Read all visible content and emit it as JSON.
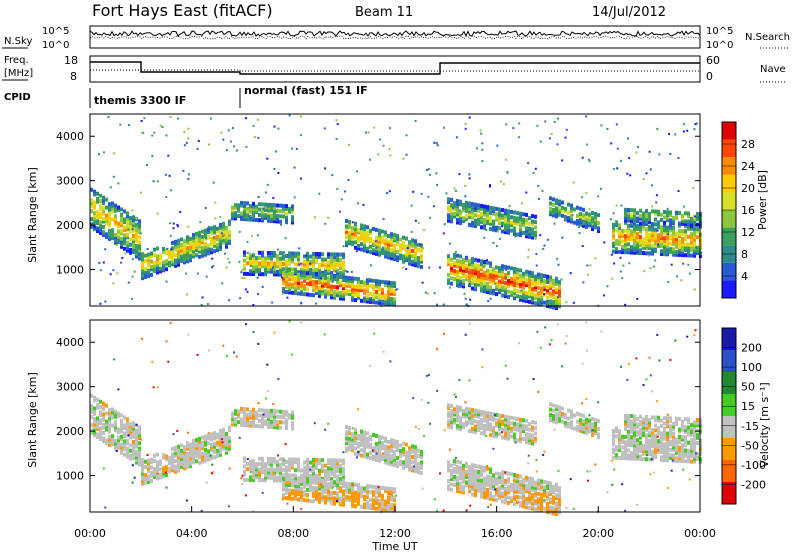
{
  "header": {
    "station": "Fort Hays East (fitACF)",
    "beam": "Beam 11",
    "date": "14/Jul/2012"
  },
  "noise_panel": {
    "left_label": "N.Sky",
    "right_label": "N.Search",
    "ticks": [
      "10^5",
      "10^0"
    ]
  },
  "freq_panel": {
    "left_label_top": "Freq.",
    "left_label_bottom": "[MHz]",
    "left_ticks": [
      "18",
      "8"
    ],
    "right_label": "Nave",
    "right_ticks": [
      "60",
      "0"
    ]
  },
  "cpid": {
    "label": "CPID",
    "programs": [
      "themis 3300 IF",
      "normal (fast) 151 IF"
    ]
  },
  "chart_data": [
    {
      "type": "heatmap",
      "panel": "power",
      "ylabel": "Slant Range [km]",
      "y_ticks": [
        "4000",
        "3000",
        "2000",
        "1000"
      ],
      "ylim": [
        180,
        4500
      ],
      "colorbar_label": "Power [dB]",
      "colorbar_ticks": [
        "28",
        "24",
        "20",
        "16",
        "12",
        "8",
        "4"
      ],
      "colorscale": [
        "#1a1aff",
        "#2a5bd7",
        "#2f8a8a",
        "#3aa05a",
        "#8cc63f",
        "#d7df2a",
        "#ffcc00",
        "#ff8c00",
        "#ff4500",
        "#e00000"
      ],
      "crange": [
        0,
        32
      ]
    },
    {
      "type": "heatmap",
      "panel": "velocity",
      "ylabel": "Slant Range [km]",
      "xlabel": "Time UT",
      "x_ticks": [
        "00:00",
        "04:00",
        "08:00",
        "12:00",
        "16:00",
        "20:00",
        "00:00"
      ],
      "y_ticks": [
        "4000",
        "3000",
        "2000",
        "1000"
      ],
      "ylim": [
        180,
        4500
      ],
      "colorbar_label": "Velocity [m s⁻¹]",
      "colorbar_ticks": [
        "200",
        "100",
        "50",
        "15",
        "-15",
        "-50",
        "-100",
        "-200"
      ],
      "colorscale": [
        "#e00000",
        "#ff6600",
        "#ff9900",
        "#c0c0c0",
        "#44cc22",
        "#228833",
        "#2a50c8",
        "#1a1aaa"
      ]
    }
  ]
}
